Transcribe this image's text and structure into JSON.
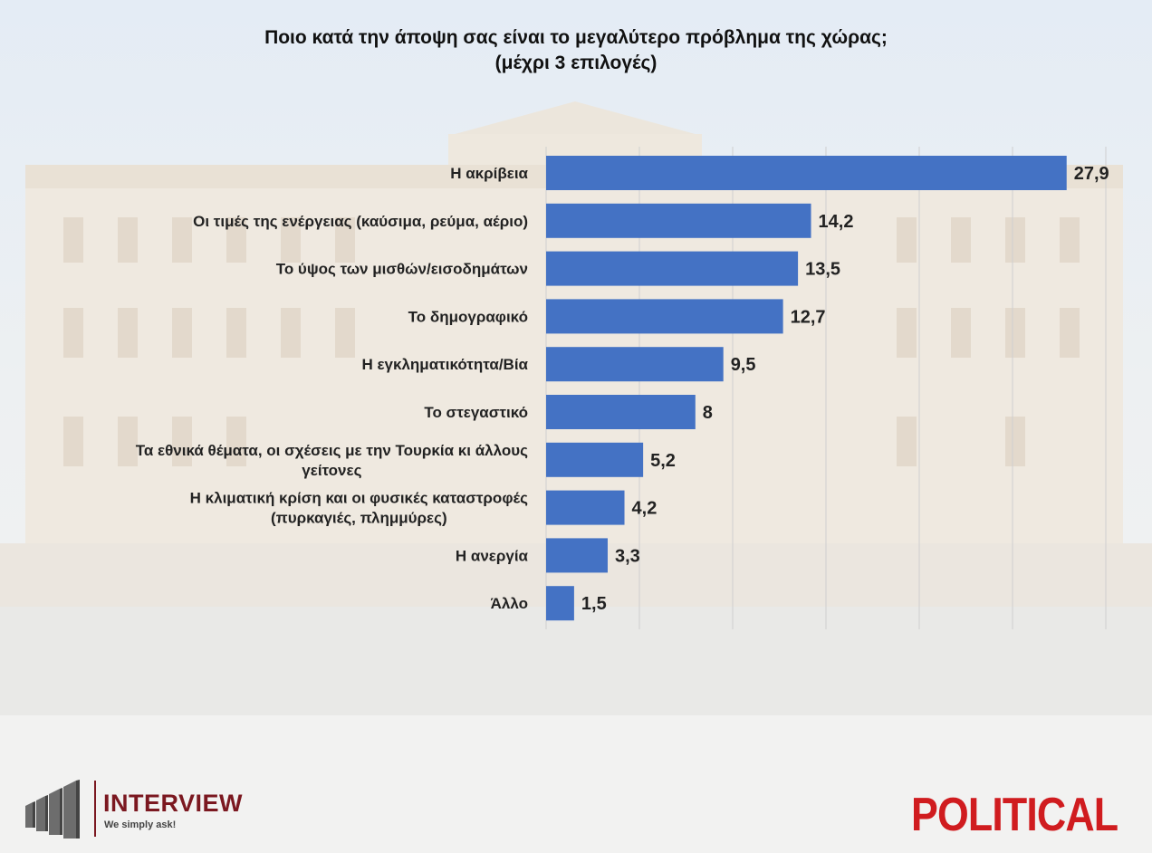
{
  "title": {
    "line1": "Ποιο κατά την άποψη σας είναι το μεγαλύτερο πρόβλημα της χώρας;",
    "line2": "(μέχρι 3 επιλογές)"
  },
  "chart_data": {
    "type": "bar",
    "orientation": "horizontal",
    "title": "Ποιο κατά την άποψη σας είναι το μεγαλύτερο πρόβλημα της χώρας; (μέχρι 3 επιλογές)",
    "categories": [
      [
        "Η ακρίβεια"
      ],
      [
        "Οι τιμές της ενέργειας (καύσιμα, ρεύμα, αέριο)"
      ],
      [
        "Το ύψος των μισθών/εισοδημάτων"
      ],
      [
        "Το δημογραφικό"
      ],
      [
        "Η εγκληματικότητα/Βία"
      ],
      [
        "Το στεγαστικό"
      ],
      [
        "Τα εθνικά θέματα, οι σχέσεις με την Τουρκία κι άλλους",
        "γείτονες"
      ],
      [
        "Η κλιματική κρίση και οι φυσικές καταστροφές",
        "(πυρκαγιές, πλημμύρες)"
      ],
      [
        "Η ανεργία"
      ],
      [
        "Άλλο"
      ]
    ],
    "values": [
      27.9,
      14.2,
      13.5,
      12.7,
      9.5,
      8,
      5.2,
      4.2,
      3.3,
      1.5
    ],
    "value_labels": [
      "27,9",
      "14,2",
      "13,5",
      "12,7",
      "9,5",
      "8",
      "5,2",
      "4,2",
      "3,3",
      "1,5"
    ],
    "xlim": [
      0,
      30
    ],
    "grid": true,
    "bar_color": "#4472c4"
  },
  "logos": {
    "left_name": "INTERVIEW",
    "left_tagline": "We simply ask!",
    "right_name": "POLITICAL"
  }
}
